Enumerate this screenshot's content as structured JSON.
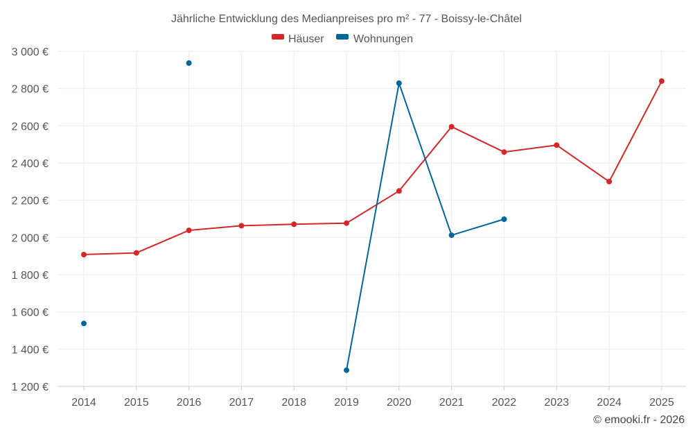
{
  "chart_data": {
    "type": "line",
    "title": "Jährliche Entwicklung des Medianpreises pro m² - 77 - Boissy-le-Châtel",
    "xlabel": "",
    "ylabel": "",
    "categories": [
      "2014",
      "2015",
      "2016",
      "2017",
      "2018",
      "2019",
      "2020",
      "2021",
      "2022",
      "2023",
      "2024",
      "2025"
    ],
    "ylim": [
      1200,
      3000
    ],
    "yticks": [
      1200,
      1400,
      1600,
      1800,
      2000,
      2200,
      2400,
      2600,
      2800,
      3000
    ],
    "ytick_labels": [
      "1 200 €",
      "1 400 €",
      "1 600 €",
      "1 800 €",
      "2 000 €",
      "2 200 €",
      "2 400 €",
      "2 600 €",
      "2 800 €",
      "3 000 €"
    ],
    "grid": true,
    "legend_position": "top-center",
    "series": [
      {
        "name": "Häuser",
        "color": "#d62728",
        "values": [
          1908,
          1917,
          2038,
          2063,
          2071,
          2077,
          2250,
          2595,
          2459,
          2496,
          2300,
          2840
        ]
      },
      {
        "name": "Wohnungen",
        "color": "#006699",
        "values": [
          1538,
          null,
          2937,
          null,
          null,
          1287,
          2829,
          2012,
          2098,
          null,
          null,
          null
        ]
      }
    ]
  },
  "footer": {
    "credit": "© emooki.fr - 2026"
  }
}
